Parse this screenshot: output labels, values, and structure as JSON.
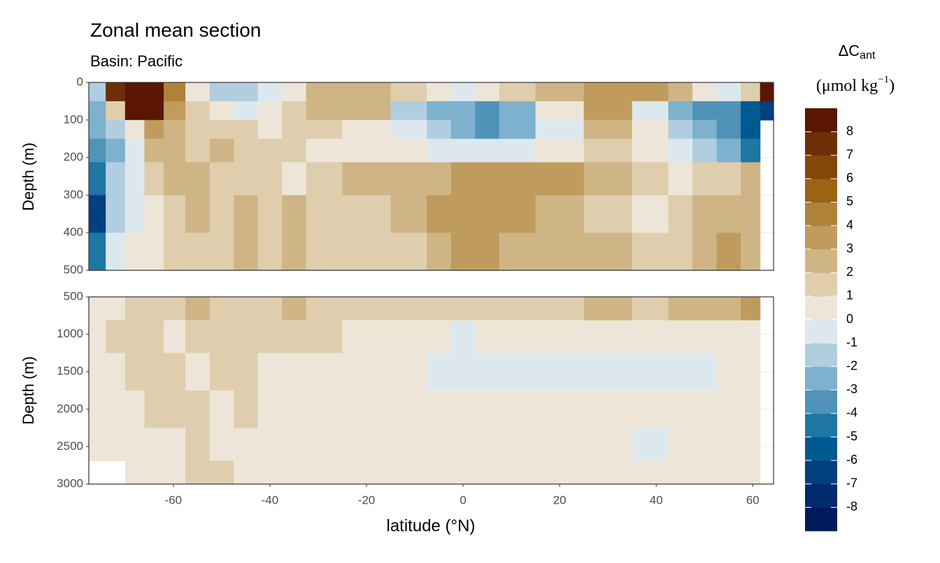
{
  "chart_data": [
    {
      "type": "heatmap",
      "title": "Zonal mean section",
      "subtitle": "Basin: Pacific",
      "ylabel": "Depth (m)",
      "x": [
        -76,
        -72,
        -68,
        -64,
        -60,
        -55,
        -50,
        -45,
        -40,
        -35,
        -30,
        -20,
        -10,
        -5,
        0,
        5,
        10,
        20,
        30,
        40,
        45,
        50,
        55,
        60,
        63
      ],
      "y": [
        25,
        75,
        125,
        175,
        250,
        350,
        450
      ],
      "z": [
        [
          -1.5,
          7,
          9,
          9,
          4,
          0.5,
          -1.5,
          -1.5,
          -0.5,
          0.5,
          2.5,
          2.5,
          1.5,
          0.5,
          -0.5,
          0.5,
          1.5,
          2.5,
          3.5,
          3.5,
          2.5,
          0.5,
          -0.5,
          1.5,
          9
        ],
        [
          -2.5,
          1.5,
          9,
          9,
          3.5,
          1.5,
          0.5,
          -0.5,
          0.5,
          1.5,
          2.5,
          2.5,
          -1.5,
          -2.5,
          -2.5,
          -3.5,
          -2.5,
          0.5,
          3.5,
          -0.5,
          -2.5,
          -3.5,
          -3.5,
          -5.5,
          -6.5
        ],
        [
          -2.5,
          -1.5,
          0.5,
          3.5,
          2.5,
          1.5,
          1.5,
          1.5,
          0.5,
          1.5,
          1.5,
          0.5,
          -0.5,
          -1.5,
          -2.5,
          -3.5,
          -2.5,
          -0.5,
          2.5,
          0.5,
          -1.5,
          -2.5,
          -3.5,
          -5.5,
          null
        ],
        [
          -3.5,
          -2.5,
          -0.5,
          2.5,
          2.5,
          1.5,
          2.5,
          1.5,
          1.5,
          1.5,
          0.5,
          0.5,
          0.5,
          -0.5,
          -0.5,
          -0.5,
          -0.5,
          0.5,
          1.5,
          0.5,
          -0.5,
          -1.5,
          -2.5,
          -4.5,
          null
        ],
        [
          -4.5,
          -1.5,
          -0.5,
          1.5,
          2.5,
          2.5,
          1.5,
          1.5,
          1.5,
          0.5,
          1.5,
          2.5,
          2.5,
          2.5,
          3.5,
          3.5,
          3.5,
          3.5,
          2.5,
          1.5,
          0.5,
          1.5,
          1.5,
          2.5,
          null
        ],
        [
          -6.5,
          -1.5,
          -0.5,
          0.5,
          1.5,
          2.5,
          1.5,
          2.5,
          1.5,
          2.5,
          1.5,
          1.5,
          2.5,
          3.5,
          3.5,
          3.5,
          3.5,
          2.5,
          1.5,
          0.5,
          1.5,
          2.5,
          2.5,
          2.5,
          null
        ],
        [
          -4.5,
          -0.5,
          0.5,
          0.5,
          1.5,
          1.5,
          1.5,
          2.5,
          1.5,
          2.5,
          1.5,
          1.5,
          1.5,
          2.5,
          3.5,
          3.5,
          2.5,
          2.5,
          2.5,
          1.5,
          1.5,
          2.5,
          3.5,
          2.5,
          null
        ]
      ],
      "xlim": [
        -77.5,
        64.3
      ],
      "ylim": [
        0,
        500
      ],
      "yticks": [
        0,
        100,
        200,
        300,
        400,
        500
      ],
      "grid": true
    },
    {
      "type": "heatmap",
      "ylabel": "Depth (m)",
      "xlabel": "latitude (°N)",
      "x": [
        -76,
        -72,
        -68,
        -64,
        -60,
        -55,
        -50,
        -45,
        -40,
        -35,
        -30,
        -20,
        -10,
        -5,
        0,
        5,
        10,
        20,
        30,
        40,
        45,
        50,
        55,
        60,
        63
      ],
      "y": [
        625,
        1000,
        1500,
        2000,
        2500,
        2875
      ],
      "z": [
        [
          0.5,
          0.5,
          1.5,
          1.5,
          1.5,
          2.5,
          1.5,
          1.5,
          1.5,
          2.5,
          1.5,
          1.5,
          1.5,
          1.5,
          1.5,
          1.5,
          1.5,
          1.5,
          2.5,
          1.5,
          2.5,
          2.5,
          2.5,
          3.5,
          null
        ],
        [
          0.5,
          1.5,
          1.5,
          1.5,
          0.5,
          1.5,
          1.5,
          1.5,
          1.5,
          1.5,
          1.5,
          0.5,
          0.5,
          0.5,
          -0.5,
          0.5,
          0.5,
          0.5,
          0.5,
          0.5,
          0.5,
          0.5,
          0.5,
          0.5,
          null
        ],
        [
          0.5,
          0.5,
          1.5,
          1.5,
          1.5,
          0.5,
          1.5,
          1.5,
          0.5,
          0.5,
          0.5,
          0.5,
          0.5,
          -0.5,
          -0.5,
          -0.5,
          -0.5,
          -0.5,
          -0.5,
          -0.5,
          -0.5,
          -0.5,
          0.5,
          0.5,
          null
        ],
        [
          0.5,
          0.5,
          0.5,
          1.5,
          1.5,
          1.5,
          0.5,
          1.5,
          0.5,
          0.5,
          0.5,
          0.5,
          0.5,
          0.5,
          0.5,
          0.5,
          0.5,
          0.5,
          0.5,
          0.5,
          0.5,
          0.5,
          0.5,
          0.5,
          null
        ],
        [
          0.5,
          0.5,
          0.5,
          0.5,
          0.5,
          1.5,
          0.5,
          0.5,
          0.5,
          0.5,
          0.5,
          0.5,
          0.5,
          0.5,
          0.5,
          0.5,
          0.5,
          0.5,
          0.5,
          -0.5,
          0.5,
          0.5,
          0.5,
          0.5,
          null
        ],
        [
          null,
          null,
          0.5,
          0.5,
          0.5,
          1.5,
          1.5,
          0.5,
          0.5,
          0.5,
          0.5,
          0.5,
          0.5,
          0.5,
          0.5,
          0.5,
          0.5,
          0.5,
          0.5,
          0.5,
          0.5,
          0.5,
          0.5,
          0.5,
          null
        ]
      ],
      "xlim": [
        -77.5,
        64.3
      ],
      "ylim": [
        500,
        3000
      ],
      "yticks": [
        500,
        1000,
        1500,
        2000,
        2500,
        3000
      ],
      "xticks": [
        -60,
        -40,
        -20,
        0,
        20,
        40,
        60
      ],
      "grid": true
    }
  ],
  "colorbar": {
    "title": [
      "ΔC",
      "ant"
    ],
    "unit": [
      "(μmol kg",
      "−1",
      ")"
    ],
    "lim": [
      -9,
      9
    ],
    "breaks": [
      -8,
      -7,
      -6,
      -5,
      -4,
      -3,
      -2,
      -1,
      0,
      1,
      2,
      3,
      4,
      5,
      6,
      7,
      8
    ],
    "colors": [
      "#00195a",
      "#002a6e",
      "#00407e",
      "#005a91",
      "#1e77a3",
      "#4f94b8",
      "#7eb1cd",
      "#b1cee0",
      "#dde8ee",
      "#ede6d8",
      "#dfceae",
      "#cfb585",
      "#bf9c5d",
      "#b08239",
      "#9a6414",
      "#84470a",
      "#6e2f06",
      "#5a1600"
    ]
  }
}
